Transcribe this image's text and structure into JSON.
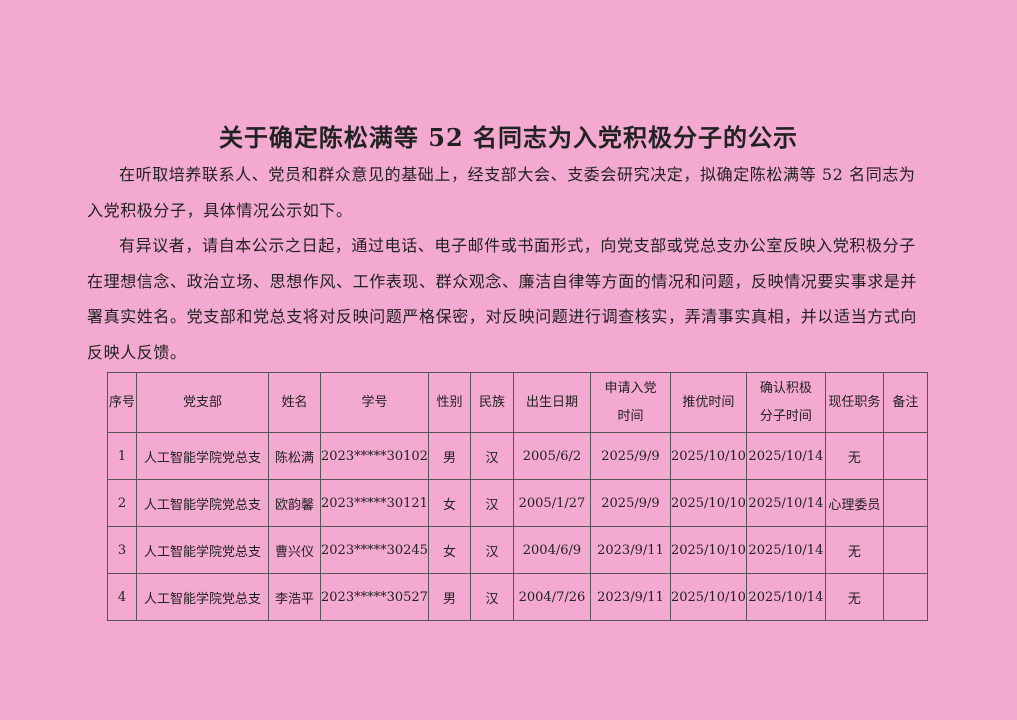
{
  "document": {
    "title": "关于确定陈松满等 52 名同志为入党积极分子的公示",
    "paragraphs": [
      "在听取培养联系人、党员和群众意见的基础上，经支部大会、支委会研究决定，拟确定陈松满等 52 名同志为入党积极分子，具体情况公示如下。",
      "有异议者，请自本公示之日起，通过电话、电子邮件或书面形式，向党支部或党总支办公室反映入党积极分子在理想信念、政治立场、思想作风、工作表现、群众观念、廉洁自律等方面的情况和问题，反映情况要实事求是并署真实姓名。党支部和党总支将对反映问题严格保密，对反映问题进行调查核实，弄清事实真相，并以适当方式向反映人反馈。"
    ],
    "table": {
      "header": [
        [
          "序号"
        ],
        [
          "党支部"
        ],
        [
          "姓名"
        ],
        [
          "学号"
        ],
        [
          "性别"
        ],
        [
          "民族"
        ],
        [
          "出生日期"
        ],
        [
          "申请入党",
          "时间"
        ],
        [
          "推优时间"
        ],
        [
          "确认积极",
          "分子时间"
        ],
        [
          "现任职务"
        ],
        [
          "备注"
        ]
      ],
      "rows": [
        [
          "1",
          "人工智能学院党总支",
          "陈松满",
          "2023*****30102",
          "男",
          "汉",
          "2005/6/2",
          "2025/9/9",
          "2025/10/10",
          "2025/10/14",
          "无"
        ],
        [
          "2",
          "人工智能学院党总支",
          "欧韵馨",
          "2023*****30121",
          "女",
          "汉",
          "2005/1/27",
          "2025/9/9",
          "2025/10/10",
          "2025/10/14",
          "心理委员"
        ],
        [
          "3",
          "人工智能学院党总支",
          "曹兴仪",
          "2023*****30245",
          "女",
          "汉",
          "2004/6/9",
          "2023/9/11",
          "2025/10/10",
          "2025/10/14",
          "无"
        ],
        [
          "4",
          "人工智能学院党总支",
          "李浩平",
          "2023*****30527",
          "男",
          "汉",
          "2004/7/26",
          "2023/9/11",
          "2025/10/10",
          "2025/10/14",
          "无"
        ]
      ]
    }
  }
}
